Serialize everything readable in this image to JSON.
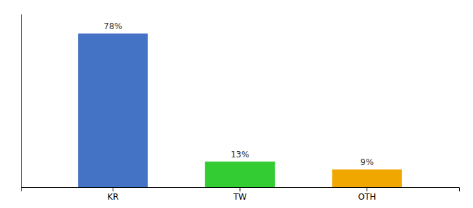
{
  "chart_data": {
    "type": "bar",
    "categories": [
      "KR",
      "TW",
      "OTH"
    ],
    "values": [
      78,
      13,
      9
    ],
    "value_labels": [
      "78%",
      "13%",
      "9%"
    ],
    "colors": [
      "#4472c4",
      "#33cc33",
      "#f0a800"
    ],
    "ylim": [
      0,
      88
    ],
    "data_labels": true,
    "tick_labels": "x",
    "grid": false
  }
}
